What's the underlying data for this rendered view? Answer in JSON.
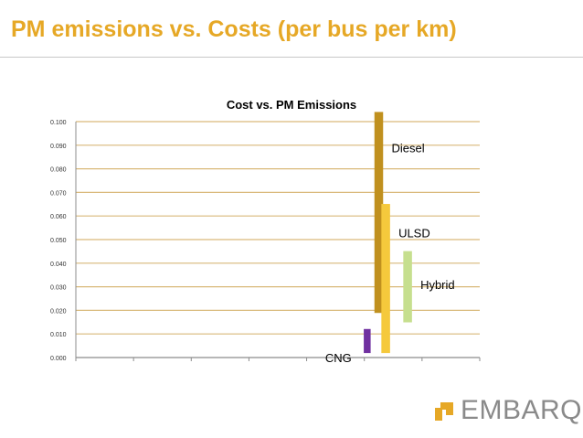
{
  "slide": {
    "title": "PM emissions vs. Costs (per bus per km)"
  },
  "chart_data": {
    "type": "bar",
    "title": "Cost vs. PM Emissions",
    "xlabel": "",
    "ylabel": "",
    "ylim": [
      0,
      0.1
    ],
    "y_ticks": [
      "0.000",
      "0.010",
      "0.020",
      "0.030",
      "0.040",
      "0.050",
      "0.060",
      "0.070",
      "0.080",
      "0.090",
      "0.100"
    ],
    "grid": true,
    "series": [
      {
        "name": "CNG",
        "x": 5.05,
        "low": 0.002,
        "high": 0.012,
        "color": "#7030a0"
      },
      {
        "name": "Diesel",
        "x": 5.25,
        "low": 0.019,
        "high": 0.104,
        "color": "#c0901e"
      },
      {
        "name": "ULSD",
        "x": 5.37,
        "low": 0.002,
        "high": 0.065,
        "color": "#f5c93c"
      },
      {
        "name": "Hybrid",
        "x": 5.75,
        "low": 0.015,
        "high": 0.045,
        "color": "#c6df8e"
      }
    ]
  },
  "brand": {
    "name": "EMBARQ",
    "accent_color": "#e6a826"
  }
}
